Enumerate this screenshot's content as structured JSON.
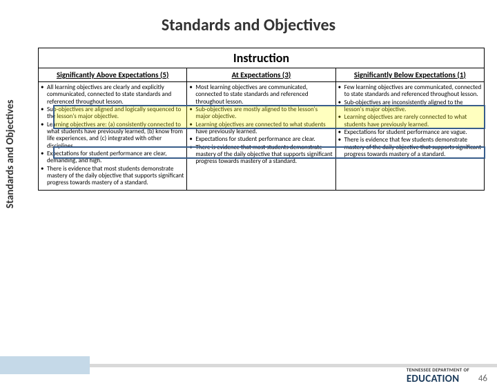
{
  "title": "Standards and Objectives",
  "vertical_label": "Standards and Objectives",
  "table": {
    "header": "Instruction",
    "columns": [
      {
        "label": "Significantly Above Expectations (5)",
        "width": "35%"
      },
      {
        "label": "At Expectations (3)",
        "width": "27%"
      },
      {
        "label": "Significantly Below Expectations (1)",
        "width": "38%"
      }
    ],
    "rows": {
      "col1": [
        "All learning objectives are clearly and explicitly communicated, connected to state standards and referenced throughout lesson.",
        "Sub-objectives are aligned and logically sequenced to the lesson's major objective.",
        "Learning objectives are: (a) consistently connected to what students have previously learned, (b) know from life experiences, and (c) integrated with other disciplines.",
        "Expectations for student performance are clear, demanding, and high.",
        "There is evidence that most students demonstrate mastery of the daily objective that supports significant progress towards mastery of a standard."
      ],
      "col2": [
        "Most learning objectives are communicated, connected to state standards and referenced throughout lesson.",
        "Sub-objectives are mostly aligned to the lesson's major objective.",
        "Learning objectives are connected to what students have previously learned.",
        "Expectations for student performance are clear.",
        "There is evidence that most students demonstrate mastery of the daily objective that supports significant progress towards mastery of a standard."
      ],
      "col3": [
        "Few learning objectives are communicated, connected to state standards and referenced throughout lesson.",
        "Sub-objectives are inconsistently aligned to the lesson's major objective.",
        "Learning objectives are rarely connected to what students have previously learned.",
        "Expectations for student performance are vague.",
        "There is evidence that few students demonstrate mastery of the daily objective that supports significant progress towards mastery of a standard."
      ]
    }
  },
  "page_number": "46",
  "logo_top": "TENNESSEE DEPARTMENT OF",
  "logo_main": "EDUCATION",
  "colors": {
    "border": "#000000",
    "highlight_fill": "rgba(255,255,0,0.25)",
    "highlight_border": "#385d8a",
    "footer_bar": "#d9d9d9",
    "footer_rect": "#c5d9e8"
  }
}
